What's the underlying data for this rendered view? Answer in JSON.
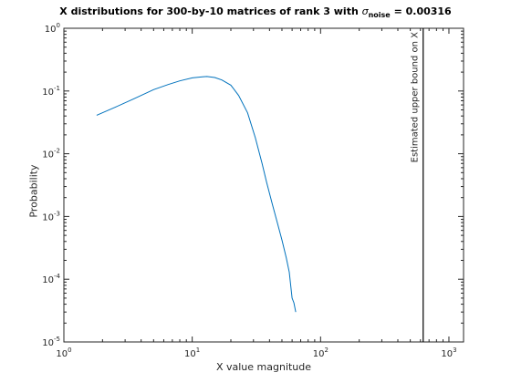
{
  "figure": {
    "title_main": "X distributions for 300-by-10  matrices of rank 3 with ",
    "title_sigma": "σ",
    "title_sub": "noise",
    "title_value": " = 0.00316"
  },
  "chart_data": {
    "type": "line",
    "title": "X distributions for 300-by-10  matrices of rank 3 with σ_noise = 0.00316",
    "xlabel": "X value magnitude",
    "ylabel": "Probability",
    "xscale": "log",
    "yscale": "log",
    "xlim": [
      1,
      1300
    ],
    "ylim": [
      1e-05,
      1
    ],
    "grid": false,
    "x_ticks": [
      {
        "value": 1,
        "base": "10",
        "exp": "0"
      },
      {
        "value": 10,
        "base": "10",
        "exp": "1"
      },
      {
        "value": 100,
        "base": "10",
        "exp": "2"
      },
      {
        "value": 1000,
        "base": "10",
        "exp": "3"
      }
    ],
    "y_ticks": [
      {
        "value": 1e-05,
        "base": "10",
        "exp": "-5"
      },
      {
        "value": 0.0001,
        "base": "10",
        "exp": "-4"
      },
      {
        "value": 0.001,
        "base": "10",
        "exp": "-3"
      },
      {
        "value": 0.01,
        "base": "10",
        "exp": "-2"
      },
      {
        "value": 0.1,
        "base": "10",
        "exp": "-1"
      },
      {
        "value": 1,
        "base": "10",
        "exp": "0"
      }
    ],
    "series": [
      {
        "color": "#0072bd",
        "x": [
          1.8,
          2.5,
          3.5,
          5,
          6.5,
          8,
          10,
          12,
          13,
          15,
          17,
          20,
          23,
          27,
          31,
          35,
          38,
          42,
          46,
          50,
          54,
          57,
          60,
          62,
          64
        ],
        "y": [
          0.041,
          0.055,
          0.075,
          0.105,
          0.127,
          0.145,
          0.162,
          0.168,
          0.17,
          0.164,
          0.15,
          0.124,
          0.085,
          0.045,
          0.018,
          0.007,
          0.0035,
          0.0016,
          0.0008,
          0.00042,
          0.00022,
          0.00013,
          5e-05,
          4.2e-05,
          3e-05
        ]
      }
    ],
    "annotation": {
      "text": "Estimated upper bound on X",
      "x": 630,
      "color": "#000000"
    }
  }
}
